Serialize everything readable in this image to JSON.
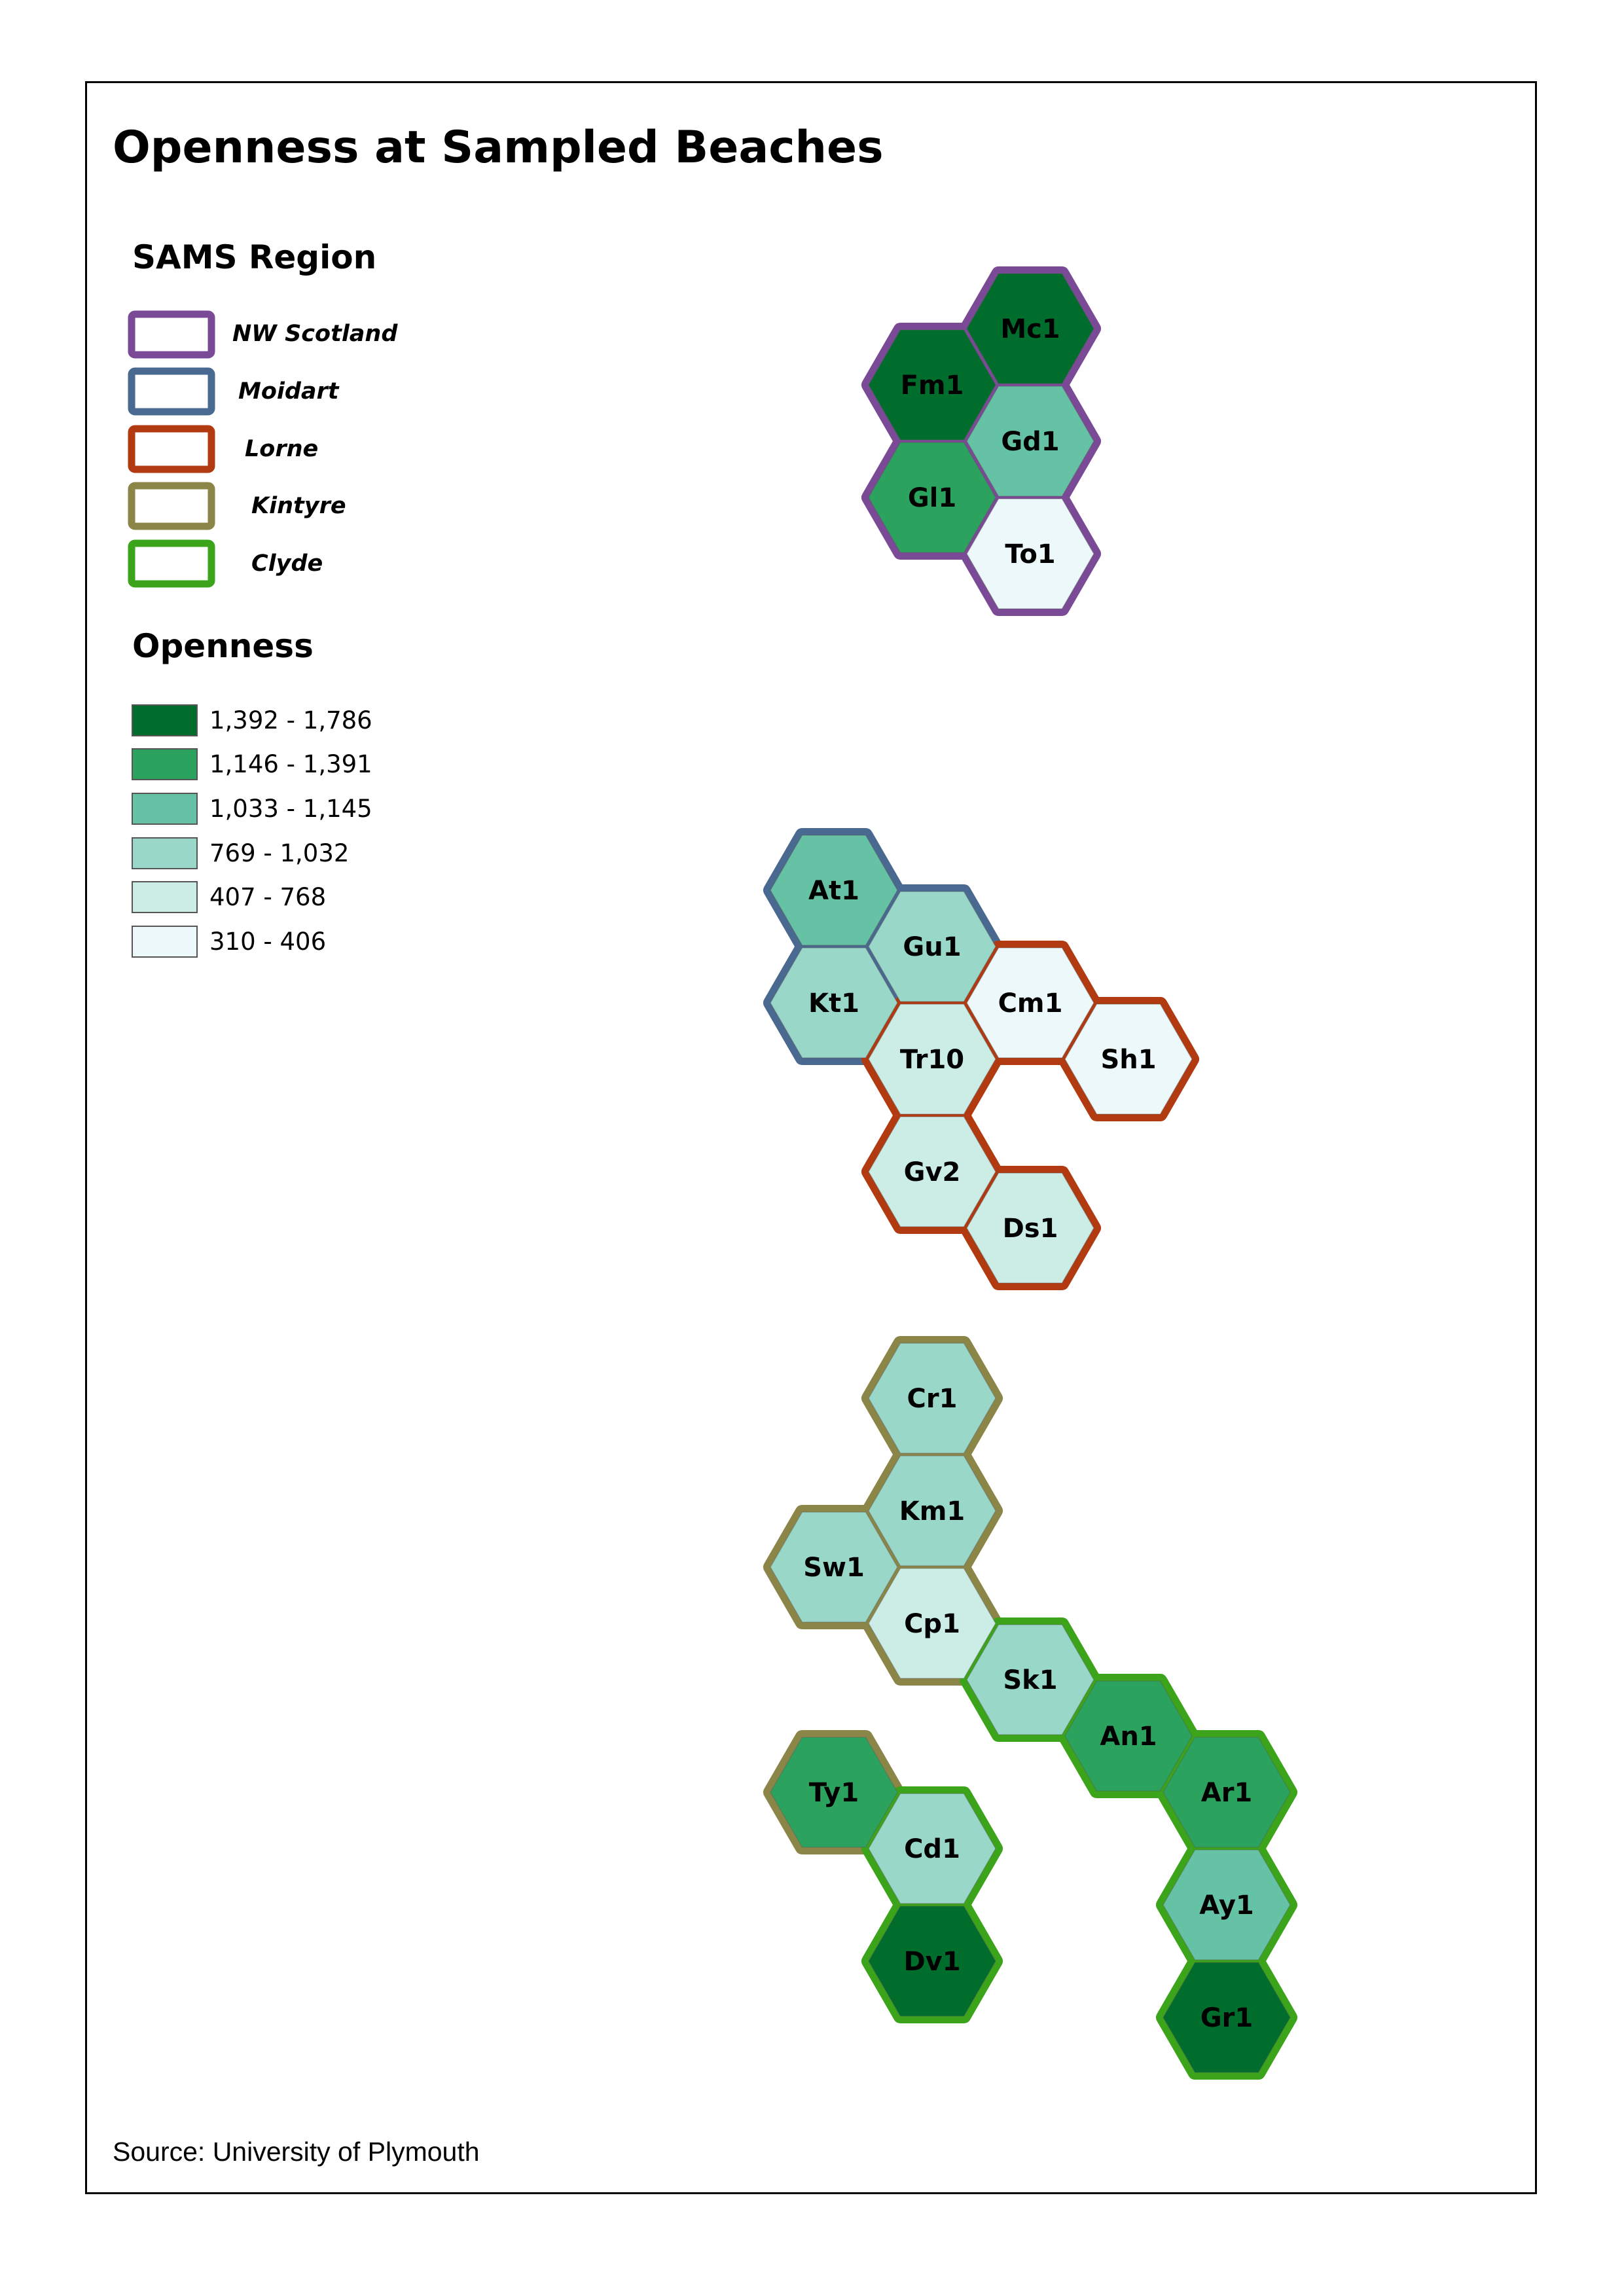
{
  "title": "Openness at Sampled Beaches",
  "source": "Source: University of Plymouth",
  "legend_region": {
    "heading": "SAMS Region",
    "items": [
      {
        "key": "nw",
        "label": "NW Scotland",
        "color": "#7B4A97"
      },
      {
        "key": "moidart",
        "label": "Moidart",
        "color": "#4A6990"
      },
      {
        "key": "lorne",
        "label": "Lorne",
        "color": "#B23A10"
      },
      {
        "key": "kintyre",
        "label": "Kintyre",
        "color": "#8B8648"
      },
      {
        "key": "clyde",
        "label": "Clyde",
        "color": "#3BA41A"
      }
    ]
  },
  "legend_openness": {
    "heading": "Openness",
    "classes": [
      {
        "label": "1,392 - 1,786",
        "color": "#006D2C"
      },
      {
        "label": "1,146 - 1,391",
        "color": "#2CA25F"
      },
      {
        "label": "1,033 - 1,145",
        "color": "#66C2A4"
      },
      {
        "label": "769 - 1,032",
        "color": "#99D8C9"
      },
      {
        "label": "407 - 768",
        "color": "#CCECE6"
      },
      {
        "label": "310 - 406",
        "color": "#EDF8FB"
      }
    ]
  },
  "beaches": [
    {
      "code": "Mc1",
      "region": "nw",
      "class": 0
    },
    {
      "code": "Fm1",
      "region": "nw",
      "class": 0
    },
    {
      "code": "Gd1",
      "region": "nw",
      "class": 2
    },
    {
      "code": "Gl1",
      "region": "nw",
      "class": 1
    },
    {
      "code": "To1",
      "region": "nw",
      "class": 5
    },
    {
      "code": "At1",
      "region": "moidart",
      "class": 2
    },
    {
      "code": "Gu1",
      "region": "moidart",
      "class": 3
    },
    {
      "code": "Kt1",
      "region": "moidart",
      "class": 3
    },
    {
      "code": "Cm1",
      "region": "lorne",
      "class": 5
    },
    {
      "code": "Tr10",
      "region": "lorne",
      "class": 4
    },
    {
      "code": "Sh1",
      "region": "lorne",
      "class": 5
    },
    {
      "code": "Gv2",
      "region": "lorne",
      "class": 4
    },
    {
      "code": "Ds1",
      "region": "lorne",
      "class": 4
    },
    {
      "code": "Cr1",
      "region": "kintyre",
      "class": 3
    },
    {
      "code": "Km1",
      "region": "kintyre",
      "class": 3
    },
    {
      "code": "Sw1",
      "region": "kintyre",
      "class": 3
    },
    {
      "code": "Cp1",
      "region": "kintyre",
      "class": 4
    },
    {
      "code": "Ty1",
      "region": "kintyre",
      "class": 1
    },
    {
      "code": "Sk1",
      "region": "clyde",
      "class": 3
    },
    {
      "code": "An1",
      "region": "clyde",
      "class": 1
    },
    {
      "code": "Ar1",
      "region": "clyde",
      "class": 1
    },
    {
      "code": "Cd1",
      "region": "clyde",
      "class": 3
    },
    {
      "code": "Ay1",
      "region": "clyde",
      "class": 2
    },
    {
      "code": "Dv1",
      "region": "clyde",
      "class": 0
    },
    {
      "code": "Gr1",
      "region": "clyde",
      "class": 0
    }
  ]
}
